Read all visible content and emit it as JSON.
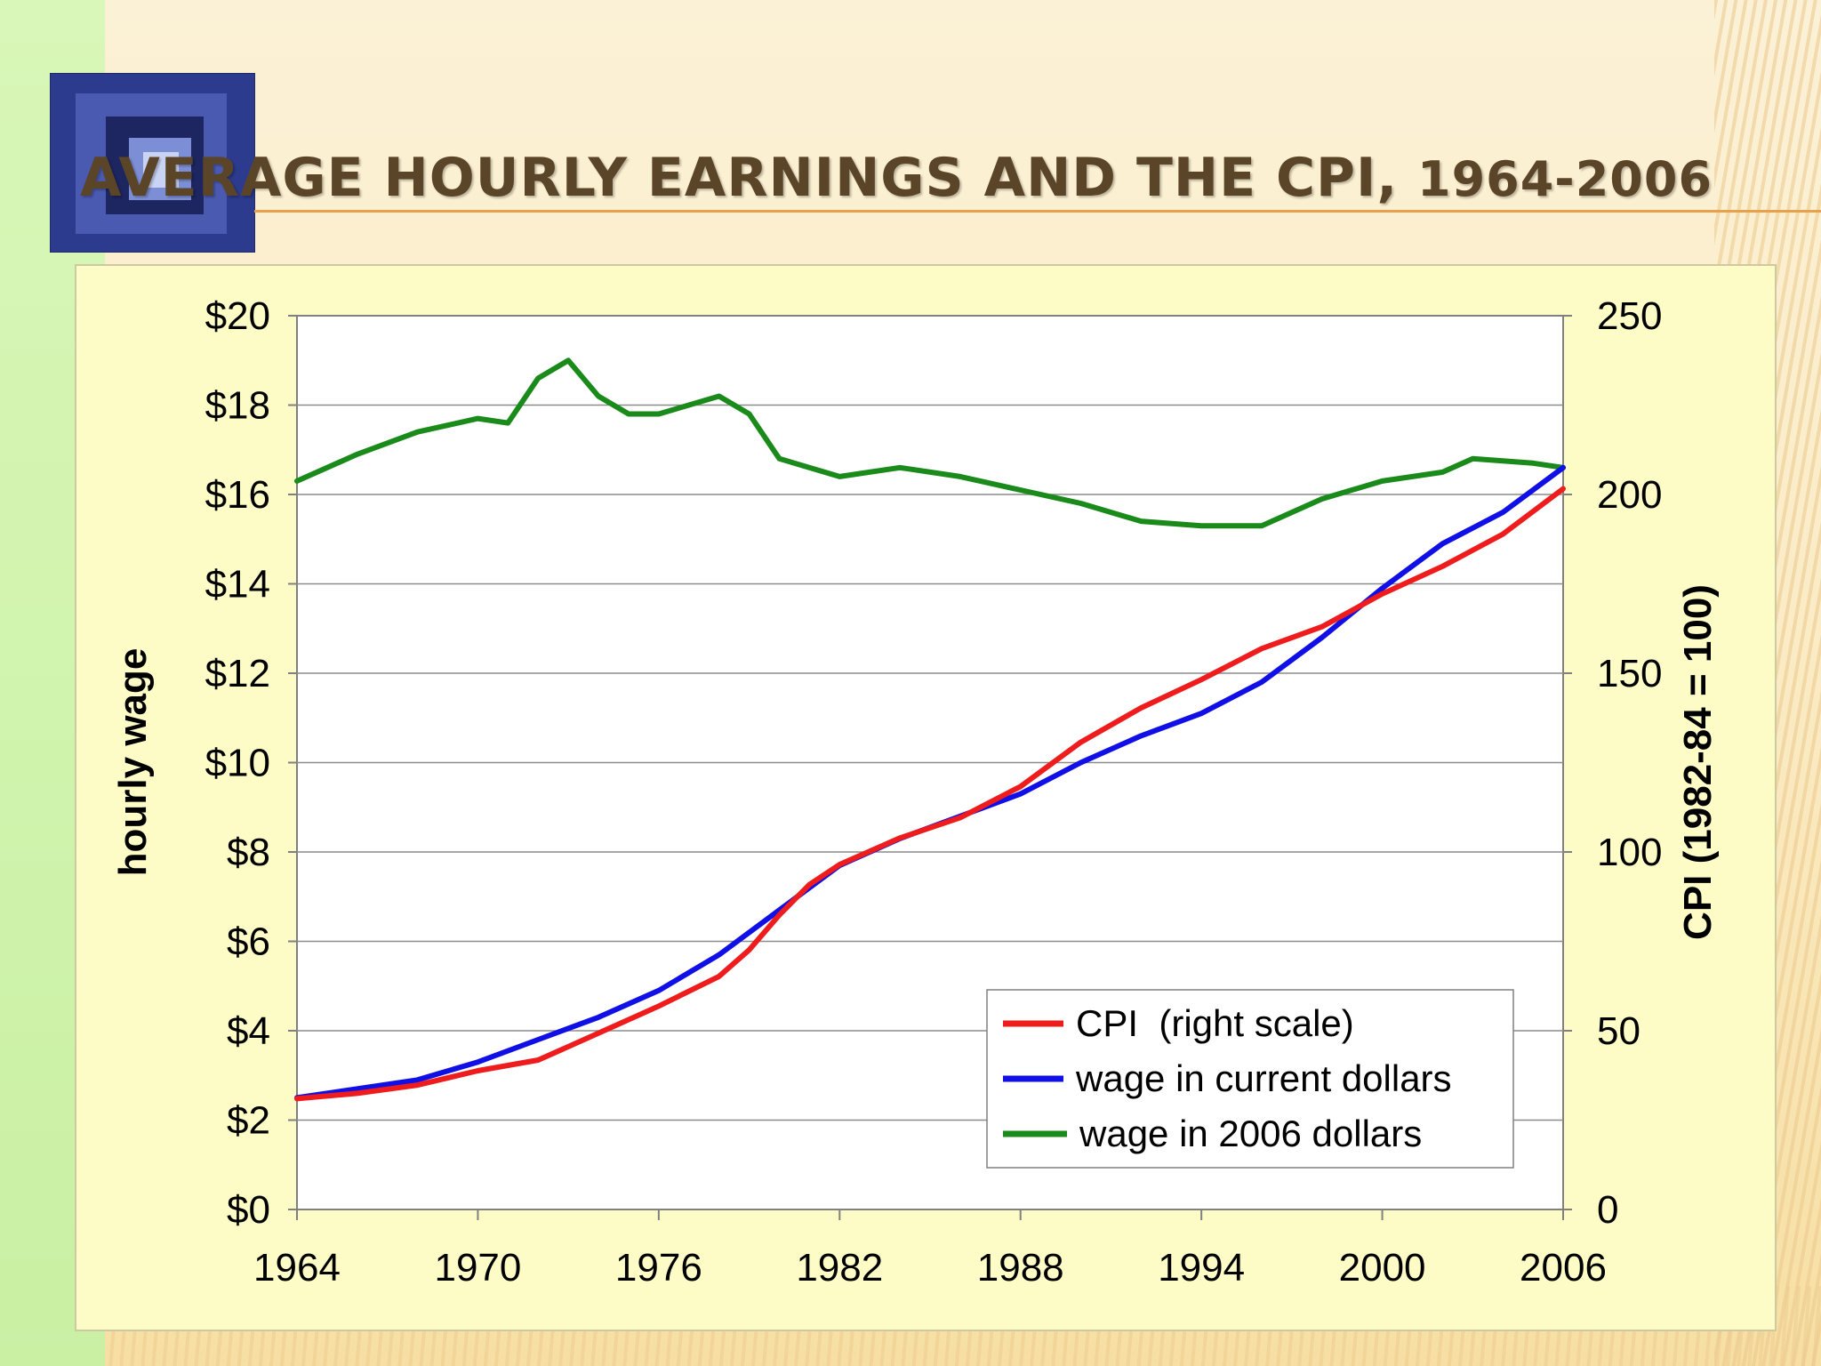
{
  "slide": {
    "title_main": "AVERAGE HOURLY EARNINGS AND THE CPI, ",
    "title_years": "1964-2006"
  },
  "colors": {
    "cpi": "#ee1c1c",
    "current": "#1010e6",
    "real": "#1a8a1a",
    "title": "#5b4528",
    "panel": "#fdfcc6"
  },
  "chart_data": {
    "type": "line",
    "title": "AVERAGE HOURLY EARNINGS AND THE CPI, 1964-2006",
    "ylabel": "hourly wage",
    "y2label": "CPI  (1982-84 = 100)",
    "xlim": [
      1964,
      2006
    ],
    "ylim": [
      0,
      20
    ],
    "y2lim": [
      0,
      250
    ],
    "x_ticks": [
      "1964",
      "1970",
      "1976",
      "1982",
      "1988",
      "1994",
      "2000",
      "2006"
    ],
    "y_ticks": [
      "$0",
      "$2",
      "$4",
      "$6",
      "$8",
      "$10",
      "$12",
      "$14",
      "$16",
      "$18",
      "$20"
    ],
    "y2_ticks": [
      "0",
      "50",
      "100",
      "150",
      "200",
      "250"
    ],
    "grid": "horizontal",
    "legend_position": "bottom-right",
    "series": [
      {
        "name": "CPI  (right scale)",
        "axis": "right",
        "x": [
          1964,
          1966,
          1968,
          1970,
          1972,
          1974,
          1976,
          1978,
          1979,
          1980,
          1981,
          1982,
          1984,
          1986,
          1988,
          1990,
          1992,
          1994,
          1996,
          1998,
          2000,
          2002,
          2004,
          2006
        ],
        "values": [
          31,
          32.5,
          34.8,
          38.8,
          41.8,
          49.3,
          56.9,
          65.2,
          72.6,
          82.4,
          90.9,
          96.5,
          103.9,
          109.6,
          118.3,
          130.7,
          140.3,
          148.2,
          156.9,
          163,
          172.2,
          179.9,
          188.9,
          201.6
        ]
      },
      {
        "name": "wage in current dollars",
        "axis": "left",
        "x": [
          1964,
          1966,
          1968,
          1970,
          1972,
          1974,
          1976,
          1978,
          1980,
          1982,
          1984,
          1986,
          1988,
          1990,
          1992,
          1994,
          1996,
          1998,
          2000,
          2002,
          2004,
          2006
        ],
        "values": [
          2.5,
          2.7,
          2.9,
          3.3,
          3.8,
          4.3,
          4.9,
          5.7,
          6.7,
          7.7,
          8.3,
          8.8,
          9.3,
          10.0,
          10.6,
          11.1,
          11.8,
          12.8,
          13.9,
          14.9,
          15.6,
          16.6
        ]
      },
      {
        "name": "wage in 2006 dollars",
        "axis": "left",
        "x": [
          1964,
          1966,
          1968,
          1970,
          1971,
          1972,
          1973,
          1974,
          1975,
          1976,
          1977,
          1978,
          1979,
          1980,
          1982,
          1984,
          1986,
          1988,
          1990,
          1992,
          1994,
          1996,
          1998,
          2000,
          2002,
          2003,
          2005,
          2006
        ],
        "values": [
          16.3,
          16.9,
          17.4,
          17.7,
          17.6,
          18.6,
          19.0,
          18.2,
          17.8,
          17.8,
          18.0,
          18.2,
          17.8,
          16.8,
          16.4,
          16.6,
          16.4,
          16.1,
          15.8,
          15.4,
          15.3,
          15.3,
          15.9,
          16.3,
          16.5,
          16.8,
          16.7,
          16.6
        ]
      }
    ]
  }
}
